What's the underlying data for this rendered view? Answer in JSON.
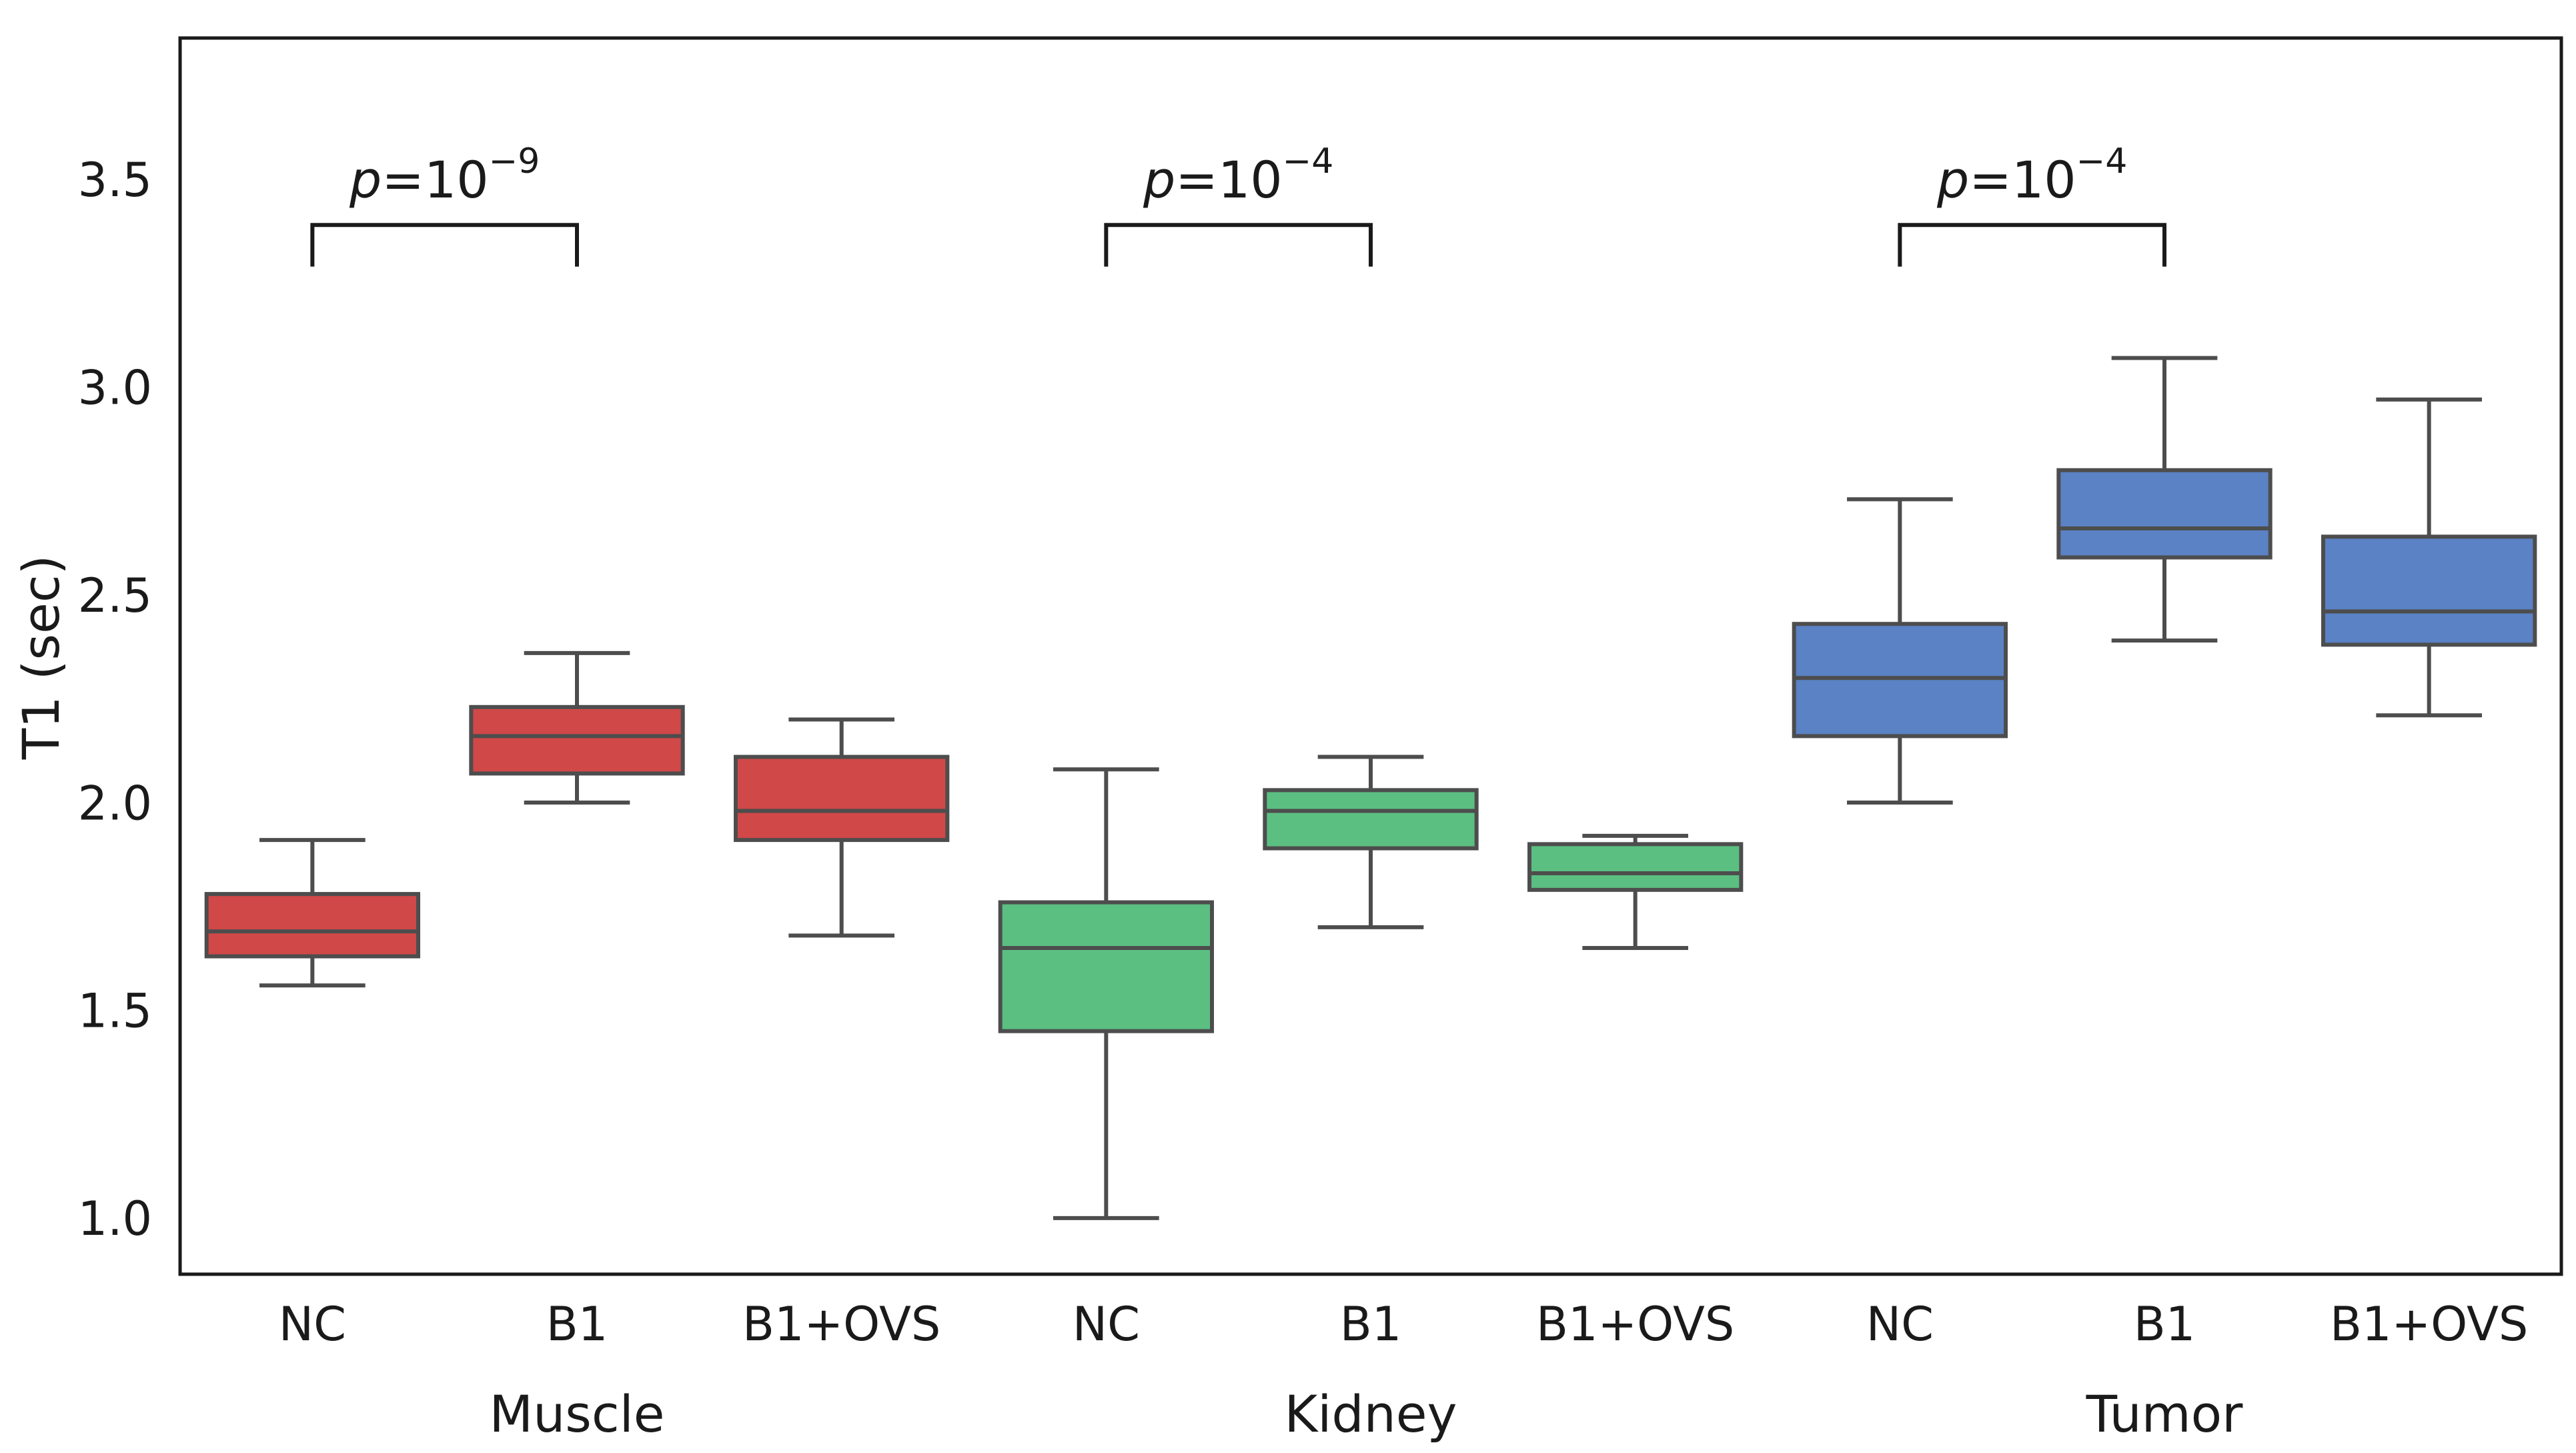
{
  "chart_data": {
    "type": "box",
    "title": "",
    "ylabel": "T1 (sec)",
    "xlabel": "",
    "ylim": [
      0.875,
      3.85
    ],
    "yticks": [
      {
        "value": 1.0,
        "label": "1.0"
      },
      {
        "value": 1.5,
        "label": "1.5"
      },
      {
        "value": 2.0,
        "label": "2.0"
      },
      {
        "value": 2.5,
        "label": "2.5"
      },
      {
        "value": 3.0,
        "label": "3.0"
      },
      {
        "value": 3.5,
        "label": "3.5"
      }
    ],
    "colors": {
      "Muscle": "#d04848",
      "Kidney": "#5bbf82",
      "Tumor": "#5a82c4",
      "line": "#4d4d4d",
      "frame": "#1a1a1a"
    },
    "groups": [
      {
        "name": "Muscle",
        "boxes": [
          {
            "label": "NC",
            "whisker_low": 1.57,
            "q1": 1.64,
            "median": 1.7,
            "q3": 1.79,
            "whisker_high": 1.92
          },
          {
            "label": "B1",
            "whisker_low": 2.01,
            "q1": 2.08,
            "median": 2.17,
            "q3": 2.24,
            "whisker_high": 2.37
          },
          {
            "label": "B1+OVS",
            "whisker_low": 1.69,
            "q1": 1.92,
            "median": 1.99,
            "q3": 2.12,
            "whisker_high": 2.21
          }
        ],
        "bracket": {
          "from": 0,
          "to": 1,
          "p_base": "10",
          "p_exp": "−9"
        }
      },
      {
        "name": "Kidney",
        "boxes": [
          {
            "label": "NC",
            "whisker_low": 1.01,
            "q1": 1.46,
            "median": 1.66,
            "q3": 1.77,
            "whisker_high": 2.09
          },
          {
            "label": "B1",
            "whisker_low": 1.71,
            "q1": 1.9,
            "median": 1.99,
            "q3": 2.04,
            "whisker_high": 2.12
          },
          {
            "label": "B1+OVS",
            "whisker_low": 1.66,
            "q1": 1.8,
            "median": 1.84,
            "q3": 1.91,
            "whisker_high": 1.93
          }
        ],
        "bracket": {
          "from": 0,
          "to": 1,
          "p_base": "10",
          "p_exp": "−4"
        }
      },
      {
        "name": "Tumor",
        "boxes": [
          {
            "label": "NC",
            "whisker_low": 2.01,
            "q1": 2.17,
            "median": 2.31,
            "q3": 2.44,
            "whisker_high": 2.74
          },
          {
            "label": "B1",
            "whisker_low": 2.4,
            "q1": 2.6,
            "median": 2.67,
            "q3": 2.81,
            "whisker_high": 3.08
          },
          {
            "label": "B1+OVS",
            "whisker_low": 2.22,
            "q1": 2.39,
            "median": 2.47,
            "q3": 2.65,
            "whisker_high": 2.98
          }
        ],
        "bracket": {
          "from": 0,
          "to": 1,
          "p_base": "10",
          "p_exp": "−4"
        }
      }
    ],
    "p_symbol": "p",
    "p_equals": "="
  }
}
